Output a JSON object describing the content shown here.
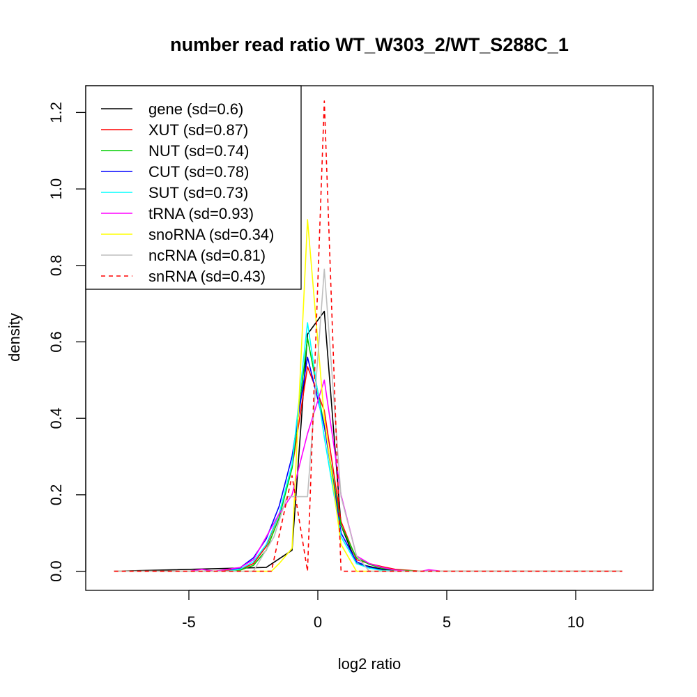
{
  "chart_data": {
    "type": "line",
    "title": "number read ratio WT_W303_2/WT_S288C_1",
    "xlabel": "log2 ratio",
    "ylabel": "density",
    "xlim": [
      -9,
      13
    ],
    "ylim": [
      -0.05,
      1.27
    ],
    "x_ticks": [
      -5,
      0,
      5,
      10
    ],
    "x_tick_labels": [
      "-5",
      "0",
      "5",
      "10"
    ],
    "y_ticks": [
      0.0,
      0.2,
      0.4,
      0.6,
      0.8,
      1.0,
      1.2
    ],
    "y_tick_labels": [
      "0.0",
      "0.2",
      "0.4",
      "0.6",
      "0.8",
      "1.0",
      "1.2"
    ],
    "grid": false,
    "legend_position": "top-left",
    "series": [
      {
        "name": "gene (sd=0.6)",
        "color": "#000000",
        "dash": false,
        "x": [
          -7.9,
          -2.0,
          -1.0,
          -0.4,
          0.25,
          0.9,
          1.5,
          2.5,
          4.0,
          11.8
        ],
        "y": [
          0,
          0.01,
          0.055,
          0.62,
          0.68,
          0.12,
          0.02,
          0.005,
          0,
          0
        ]
      },
      {
        "name": "XUT (sd=0.87)",
        "color": "#ff0000",
        "dash": false,
        "x": [
          -7.9,
          -4.0,
          -3.0,
          -2.5,
          -2.0,
          -1.5,
          -1.0,
          -0.4,
          0.25,
          0.9,
          1.5,
          2.0,
          2.5,
          3.0,
          4.0,
          11.8
        ],
        "y": [
          0,
          0,
          0.005,
          0.02,
          0.065,
          0.15,
          0.27,
          0.535,
          0.42,
          0.13,
          0.03,
          0.02,
          0.012,
          0.005,
          0,
          0
        ]
      },
      {
        "name": "NUT (sd=0.74)",
        "color": "#00cd00",
        "dash": false,
        "x": [
          -7.9,
          -3.5,
          -3.0,
          -2.5,
          -2.0,
          -1.5,
          -1.0,
          -0.4,
          0.25,
          0.9,
          1.5,
          2.0,
          2.5,
          3.0,
          4.0,
          11.8
        ],
        "y": [
          0,
          0,
          0.003,
          0.015,
          0.055,
          0.14,
          0.27,
          0.61,
          0.38,
          0.12,
          0.035,
          0.018,
          0.008,
          0.003,
          0,
          0
        ]
      },
      {
        "name": "CUT (sd=0.78)",
        "color": "#0000ff",
        "dash": false,
        "x": [
          -7.9,
          -3.5,
          -3.0,
          -2.5,
          -2.0,
          -1.5,
          -1.0,
          -0.4,
          0.25,
          0.9,
          1.5,
          2.0,
          2.5,
          3.0,
          11.8
        ],
        "y": [
          0,
          0,
          0.01,
          0.035,
          0.085,
          0.17,
          0.3,
          0.56,
          0.38,
          0.1,
          0.025,
          0.01,
          0.003,
          0,
          0
        ]
      },
      {
        "name": "SUT (sd=0.73)",
        "color": "#00ffff",
        "dash": false,
        "x": [
          -7.9,
          -3.5,
          -3.0,
          -2.5,
          -2.0,
          -1.5,
          -1.0,
          -0.4,
          0.25,
          0.9,
          1.5,
          2.0,
          2.5,
          3.0,
          11.8
        ],
        "y": [
          0,
          0,
          0.006,
          0.025,
          0.07,
          0.15,
          0.28,
          0.65,
          0.35,
          0.09,
          0.02,
          0.008,
          0.002,
          0,
          0
        ]
      },
      {
        "name": "tRNA (sd=0.93)",
        "color": "#ff00ff",
        "dash": false,
        "x": [
          -7.9,
          -5.0,
          -4.5,
          -4.0,
          -3.0,
          -2.5,
          -2.0,
          -1.5,
          -1.0,
          -0.4,
          0.25,
          0.9,
          1.5,
          2.0,
          2.5,
          3.0,
          3.5,
          4.0,
          4.3,
          4.8,
          11.8
        ],
        "y": [
          0,
          0,
          0.005,
          0,
          0.01,
          0.03,
          0.09,
          0.15,
          0.2,
          0.36,
          0.5,
          0.2,
          0.04,
          0.02,
          0.01,
          0.003,
          0,
          0,
          0.004,
          0,
          0
        ]
      },
      {
        "name": "snoRNA (sd=0.34)",
        "color": "#ffff00",
        "dash": false,
        "x": [
          -7.9,
          -1.8,
          -1.5,
          -1.0,
          -0.4,
          0.25,
          0.9,
          1.5,
          11.8
        ],
        "y": [
          0,
          0,
          0.02,
          0.06,
          0.92,
          0.4,
          0.07,
          0,
          0
        ]
      },
      {
        "name": "ncRNA (sd=0.81)",
        "color": "#bebebe",
        "dash": false,
        "x": [
          -7.9,
          -2.5,
          -1.7,
          -1.2,
          -0.4,
          0.25,
          0.9,
          1.5,
          2.0,
          11.8
        ],
        "y": [
          0,
          0,
          0.09,
          0.195,
          0.195,
          0.79,
          0.195,
          0.04,
          0,
          0
        ]
      },
      {
        "name": "snRNA (sd=0.43)",
        "color": "#ff0000",
        "dash": true,
        "x": [
          -7.9,
          -1.8,
          -1.0,
          -0.4,
          0.25,
          0.9,
          11.8
        ],
        "y": [
          0,
          0,
          0.25,
          0,
          1.23,
          0,
          0
        ]
      }
    ]
  }
}
